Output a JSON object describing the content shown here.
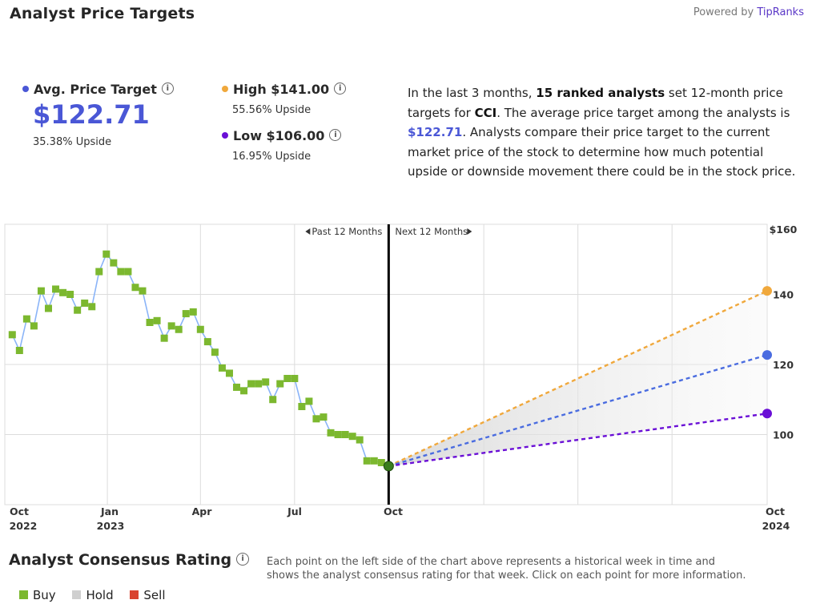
{
  "header": {
    "title": "Analyst Price Targets",
    "powered_prefix": "Powered by",
    "powered_brand": "TipRanks"
  },
  "summary": {
    "avg": {
      "label": "Avg. Price Target",
      "value": "$122.71",
      "upside": "35.38% Upside",
      "color": "#4a57d6"
    },
    "high": {
      "label": "High $141.00",
      "upside": "55.56% Upside",
      "color": "#f0a83c"
    },
    "low": {
      "label": "Low $106.00",
      "upside": "16.95% Upside",
      "color": "#6a0fd6"
    }
  },
  "description": {
    "p1": "In the last 3 months, ",
    "analysts": "15 ranked analysts",
    "p2": " set 12-month price targets for ",
    "ticker": "CCI",
    "p3": ". The average price target among the analysts is ",
    "avg": "$122.71",
    "p4": ". Analysts compare their price target to the current market price of the stock to determine how much potential upside or downside movement there could be in the stock price."
  },
  "chart_data": {
    "type": "line",
    "past_label": "Past 12 Months",
    "next_label": "Next 12 Months",
    "x_ticks": [
      {
        "label": "Oct",
        "sub": "2022"
      },
      {
        "label": "Jan",
        "sub": "2023"
      },
      {
        "label": "Apr",
        "sub": ""
      },
      {
        "label": "Jul",
        "sub": ""
      },
      {
        "label": "Oct",
        "sub": ""
      },
      {
        "label": "Oct",
        "sub": "2024"
      }
    ],
    "y_ticks": [
      "$160",
      "140",
      "120",
      "100"
    ],
    "ylim": [
      80,
      160
    ],
    "grid": true,
    "history": {
      "name": "Price",
      "line_color": "#8ab4f8",
      "marker_color": "#7cb82f",
      "x": [
        "2022-09-30",
        "2022-10-07",
        "2022-10-14",
        "2022-10-21",
        "2022-10-28",
        "2022-11-04",
        "2022-11-11",
        "2022-11-18",
        "2022-11-25",
        "2022-12-02",
        "2022-12-09",
        "2022-12-16",
        "2022-12-23",
        "2022-12-30",
        "2023-01-06",
        "2023-01-13",
        "2023-01-20",
        "2023-01-27",
        "2023-02-03",
        "2023-02-10",
        "2023-02-17",
        "2023-02-24",
        "2023-03-03",
        "2023-03-10",
        "2023-03-17",
        "2023-03-24",
        "2023-03-31",
        "2023-04-07",
        "2023-04-14",
        "2023-04-21",
        "2023-04-28",
        "2023-05-05",
        "2023-05-12",
        "2023-05-19",
        "2023-05-26",
        "2023-06-02",
        "2023-06-09",
        "2023-06-16",
        "2023-06-23",
        "2023-06-30",
        "2023-07-07",
        "2023-07-14",
        "2023-07-21",
        "2023-07-28",
        "2023-08-04",
        "2023-08-11",
        "2023-08-18",
        "2023-08-25",
        "2023-09-01",
        "2023-09-08",
        "2023-09-15",
        "2023-09-22",
        "2023-09-29"
      ],
      "y": [
        128.5,
        124,
        133,
        131,
        141,
        136,
        141.5,
        140.5,
        140,
        135.5,
        137.5,
        136.5,
        146.5,
        151.5,
        149,
        146.5,
        146.5,
        142,
        141,
        132,
        132.5,
        127.5,
        131,
        130,
        134.5,
        135,
        130,
        126.5,
        123.5,
        119,
        117.5,
        113.5,
        112.5,
        114.5,
        114.5,
        115,
        110,
        114.5,
        116,
        116,
        108,
        109.5,
        104.5,
        105,
        100.5,
        100,
        100,
        99.5,
        98.5,
        92.5,
        92.5,
        92,
        91
      ]
    },
    "projections": [
      {
        "name": "High",
        "value": 141,
        "color": "#f0a83c"
      },
      {
        "name": "Avg",
        "value": 122.71,
        "color": "#4a6ce0"
      },
      {
        "name": "Low",
        "value": 106,
        "color": "#6a0fd6"
      }
    ],
    "projection_end": "2024-09-29",
    "current_marker_color": "#3a7d1e"
  },
  "consensus": {
    "title": "Analyst Consensus Rating",
    "note": "Each point on the left side of the chart above represents a historical week in time and shows the analyst consensus rating for that week. Click on each point for more information.",
    "legend": [
      {
        "label": "Buy",
        "color": "#7cb82f"
      },
      {
        "label": "Hold",
        "color": "#cfcfcf"
      },
      {
        "label": "Sell",
        "color": "#d9432f"
      }
    ]
  }
}
